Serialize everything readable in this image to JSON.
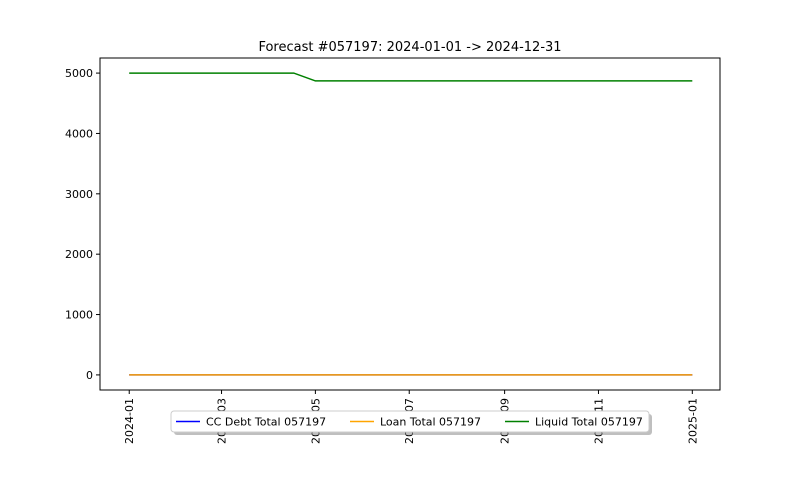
{
  "chart_data": {
    "type": "line",
    "title": "Forecast #057197: 2024-01-01 -> 2024-12-31",
    "xlabel": "",
    "ylabel": "",
    "x_axis": {
      "type": "date",
      "range": [
        "2023-12-13",
        "2025-01-19"
      ],
      "ticks": [
        "2024-01",
        "2024-03",
        "2024-05",
        "2024-07",
        "2024-09",
        "2024-11",
        "2025-01"
      ]
    },
    "ylim": [
      -250,
      5250
    ],
    "yticks": [
      0,
      1000,
      2000,
      3000,
      4000,
      5000
    ],
    "grid": false,
    "legend_position": "bottom-center",
    "series": [
      {
        "name": "CC Debt Total 057197",
        "color": "#0000ff",
        "points": [
          [
            "2024-01-01",
            0
          ],
          [
            "2025-01-01",
            0
          ]
        ]
      },
      {
        "name": "Loan Total 057197",
        "color": "#ffa500",
        "points": [
          [
            "2024-01-01",
            0
          ],
          [
            "2025-01-01",
            0
          ]
        ]
      },
      {
        "name": "Liquid Total 057197",
        "color": "#008000",
        "points": [
          [
            "2024-01-01",
            5000
          ],
          [
            "2024-04-17",
            5000
          ],
          [
            "2024-05-01",
            4870
          ],
          [
            "2025-01-01",
            4870
          ]
        ]
      }
    ]
  }
}
